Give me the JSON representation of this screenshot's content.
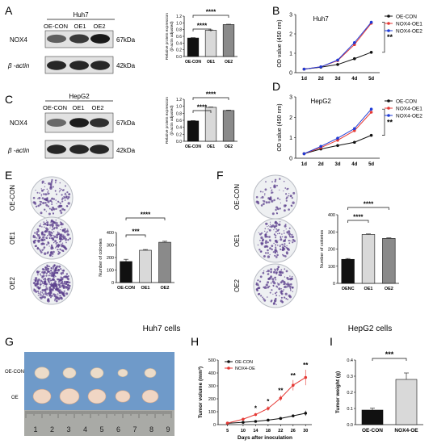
{
  "panels": {
    "A": {
      "letter": "A",
      "blot": {
        "cell_line": "Huh7",
        "lanes": [
          "OE-CON",
          "OE1",
          "OE2"
        ],
        "bands": [
          {
            "name": "NOX4",
            "kda": "67kDa",
            "intensity": [
              0.55,
              0.75,
              0.92
            ]
          },
          {
            "name": "β -actin",
            "kda": "42kDa",
            "intensity": [
              0.85,
              0.85,
              0.85
            ]
          }
        ]
      },
      "bar": {
        "ylabel": "Relative protein expression",
        "ylabel2": "(β-actin adjusted)",
        "categories": [
          "OE-CON",
          "OE1",
          "OE2"
        ],
        "values": [
          0.55,
          0.78,
          0.95
        ],
        "errors": [
          0.01,
          0.01,
          0.01
        ],
        "fills": [
          "#111111",
          "#d9d9d9",
          "#8a8a8a"
        ],
        "ylim": [
          0,
          1.2
        ],
        "yticks": [
          "0.0",
          "0.2",
          "0.4",
          "0.6",
          "0.8",
          "1.0",
          "1.2"
        ],
        "sig": [
          "****",
          "****"
        ]
      }
    },
    "B": {
      "letter": "B",
      "title": "Huh7",
      "ylabel": "OD value (450 nm)",
      "x": [
        "1d",
        "2d",
        "3d",
        "4d",
        "5d"
      ],
      "yticks": [
        "0",
        "1",
        "2",
        "3"
      ],
      "ylim": [
        0,
        3
      ],
      "series": [
        {
          "name": "OE-CON",
          "color": "#111111",
          "values": [
            0.18,
            0.28,
            0.42,
            0.72,
            1.05
          ]
        },
        {
          "name": "NOX4-OE1",
          "color": "#e53935",
          "values": [
            0.18,
            0.3,
            0.62,
            1.45,
            2.55
          ]
        },
        {
          "name": "NOX4-OE2",
          "color": "#1f3bd6",
          "values": [
            0.18,
            0.3,
            0.65,
            1.55,
            2.6
          ]
        }
      ],
      "sig": "**"
    },
    "C": {
      "letter": "C",
      "blot": {
        "cell_line": "HepG2",
        "lanes": [
          "OE-CON",
          "OE1",
          "OE2"
        ],
        "bands": [
          {
            "name": "NOX4",
            "kda": "67kDa",
            "intensity": [
              0.5,
              0.9,
              0.8
            ]
          },
          {
            "name": "β -actin",
            "kda": "42kDa",
            "intensity": [
              0.85,
              0.85,
              0.85
            ]
          }
        ]
      },
      "bar": {
        "ylabel": "Relative protein expression",
        "ylabel2": "(β-actin adjusted)",
        "categories": [
          "OE-CON",
          "OE1",
          "OE2"
        ],
        "values": [
          0.58,
          0.97,
          0.88
        ],
        "errors": [
          0.01,
          0.01,
          0.01
        ],
        "fills": [
          "#111111",
          "#d9d9d9",
          "#8a8a8a"
        ],
        "ylim": [
          0,
          1.2
        ],
        "yticks": [
          "0.0",
          "0.2",
          "0.4",
          "0.6",
          "0.8",
          "1.0",
          "1.2"
        ],
        "sig": [
          "****",
          "****"
        ]
      }
    },
    "D": {
      "letter": "D",
      "title": "HepG2",
      "ylabel": "OD value (450 nm)",
      "x": [
        "1d",
        "2d",
        "3d",
        "4d",
        "5d"
      ],
      "yticks": [
        "0",
        "1",
        "2",
        "3"
      ],
      "ylim": [
        0,
        3
      ],
      "series": [
        {
          "name": "OE-CON",
          "color": "#111111",
          "values": [
            0.22,
            0.45,
            0.62,
            0.78,
            1.12
          ]
        },
        {
          "name": "NOX4-OE1",
          "color": "#e53935",
          "values": [
            0.22,
            0.52,
            0.88,
            1.35,
            2.25
          ]
        },
        {
          "name": "NOX4-OE2",
          "color": "#1f3bd6",
          "values": [
            0.22,
            0.58,
            0.98,
            1.45,
            2.4
          ]
        }
      ],
      "sig": "**"
    },
    "E": {
      "letter": "E",
      "dishes": [
        "OE-CON",
        "OE1",
        "OE2"
      ],
      "densities": [
        0.25,
        0.55,
        0.9
      ],
      "bar": {
        "ylabel": "Number of colonies",
        "categories": [
          "OE-CON",
          "OE1",
          "OE2"
        ],
        "values": [
          168,
          258,
          322
        ],
        "errors": [
          18,
          6,
          8
        ],
        "fills": [
          "#111111",
          "#d9d9d9",
          "#8a8a8a"
        ],
        "ylim": [
          0,
          400
        ],
        "yticks": [
          "0",
          "100",
          "200",
          "300",
          "400"
        ],
        "sig": [
          "***",
          "****"
        ]
      },
      "caption": "Huh7 cells"
    },
    "F": {
      "letter": "F",
      "dishes": [
        "OE-CON",
        "OE1",
        "OE2"
      ],
      "densities": [
        0.1,
        0.35,
        0.3
      ],
      "bar": {
        "ylabel": "Number of colonies",
        "categories": [
          "OENC",
          "OE1",
          "OE2"
        ],
        "values": [
          140,
          285,
          262
        ],
        "errors": [
          5,
          3,
          3
        ],
        "fills": [
          "#111111",
          "#d9d9d9",
          "#8a8a8a"
        ],
        "ylim": [
          0,
          400
        ],
        "yticks": [
          "0",
          "100",
          "200",
          "300",
          "400"
        ],
        "sig": [
          "****",
          "****"
        ]
      },
      "caption": "HepG2 cells"
    },
    "G": {
      "letter": "G",
      "rows": [
        "OE-CON",
        "OE"
      ],
      "ruler": [
        "1",
        "2",
        "3",
        "4",
        "5",
        "6",
        "7",
        "8",
        "9"
      ]
    },
    "H": {
      "letter": "H",
      "ylabel": "Tumor volume (mm³)",
      "xlabel": "Days after inoculation",
      "x": [
        5,
        10,
        14,
        18,
        22,
        26,
        30
      ],
      "xlim": [
        2,
        32
      ],
      "ylim": [
        0,
        500
      ],
      "yticks": [
        "0",
        "100",
        "200",
        "300",
        "400",
        "500"
      ],
      "series": [
        {
          "name": "OE-CON",
          "color": "#111111",
          "values": [
            10,
            18,
            25,
            35,
            48,
            68,
            88
          ],
          "errors": [
            3,
            4,
            5,
            6,
            8,
            10,
            20
          ]
        },
        {
          "name": "NOX4-OE",
          "color": "#e53935",
          "values": [
            12,
            42,
            78,
            125,
            205,
            305,
            365
          ],
          "errors": [
            4,
            8,
            12,
            18,
            22,
            40,
            60
          ]
        }
      ],
      "sig": [
        "*",
        "*",
        "**",
        "**",
        "**"
      ],
      "sig_x": [
        14,
        18,
        22,
        26,
        30
      ]
    },
    "I": {
      "letter": "I",
      "ylabel": "Tumor weight (g)",
      "categories": [
        "OE-CON",
        "NOX4-OE"
      ],
      "values": [
        0.09,
        0.28
      ],
      "errors": [
        0.012,
        0.04
      ],
      "fills": [
        "#111111",
        "#d9d9d9"
      ],
      "ylim": [
        0,
        0.4
      ],
      "yticks": [
        "0.0",
        "0.1",
        "0.2",
        "0.3",
        "0.4"
      ],
      "sig": "***"
    }
  }
}
